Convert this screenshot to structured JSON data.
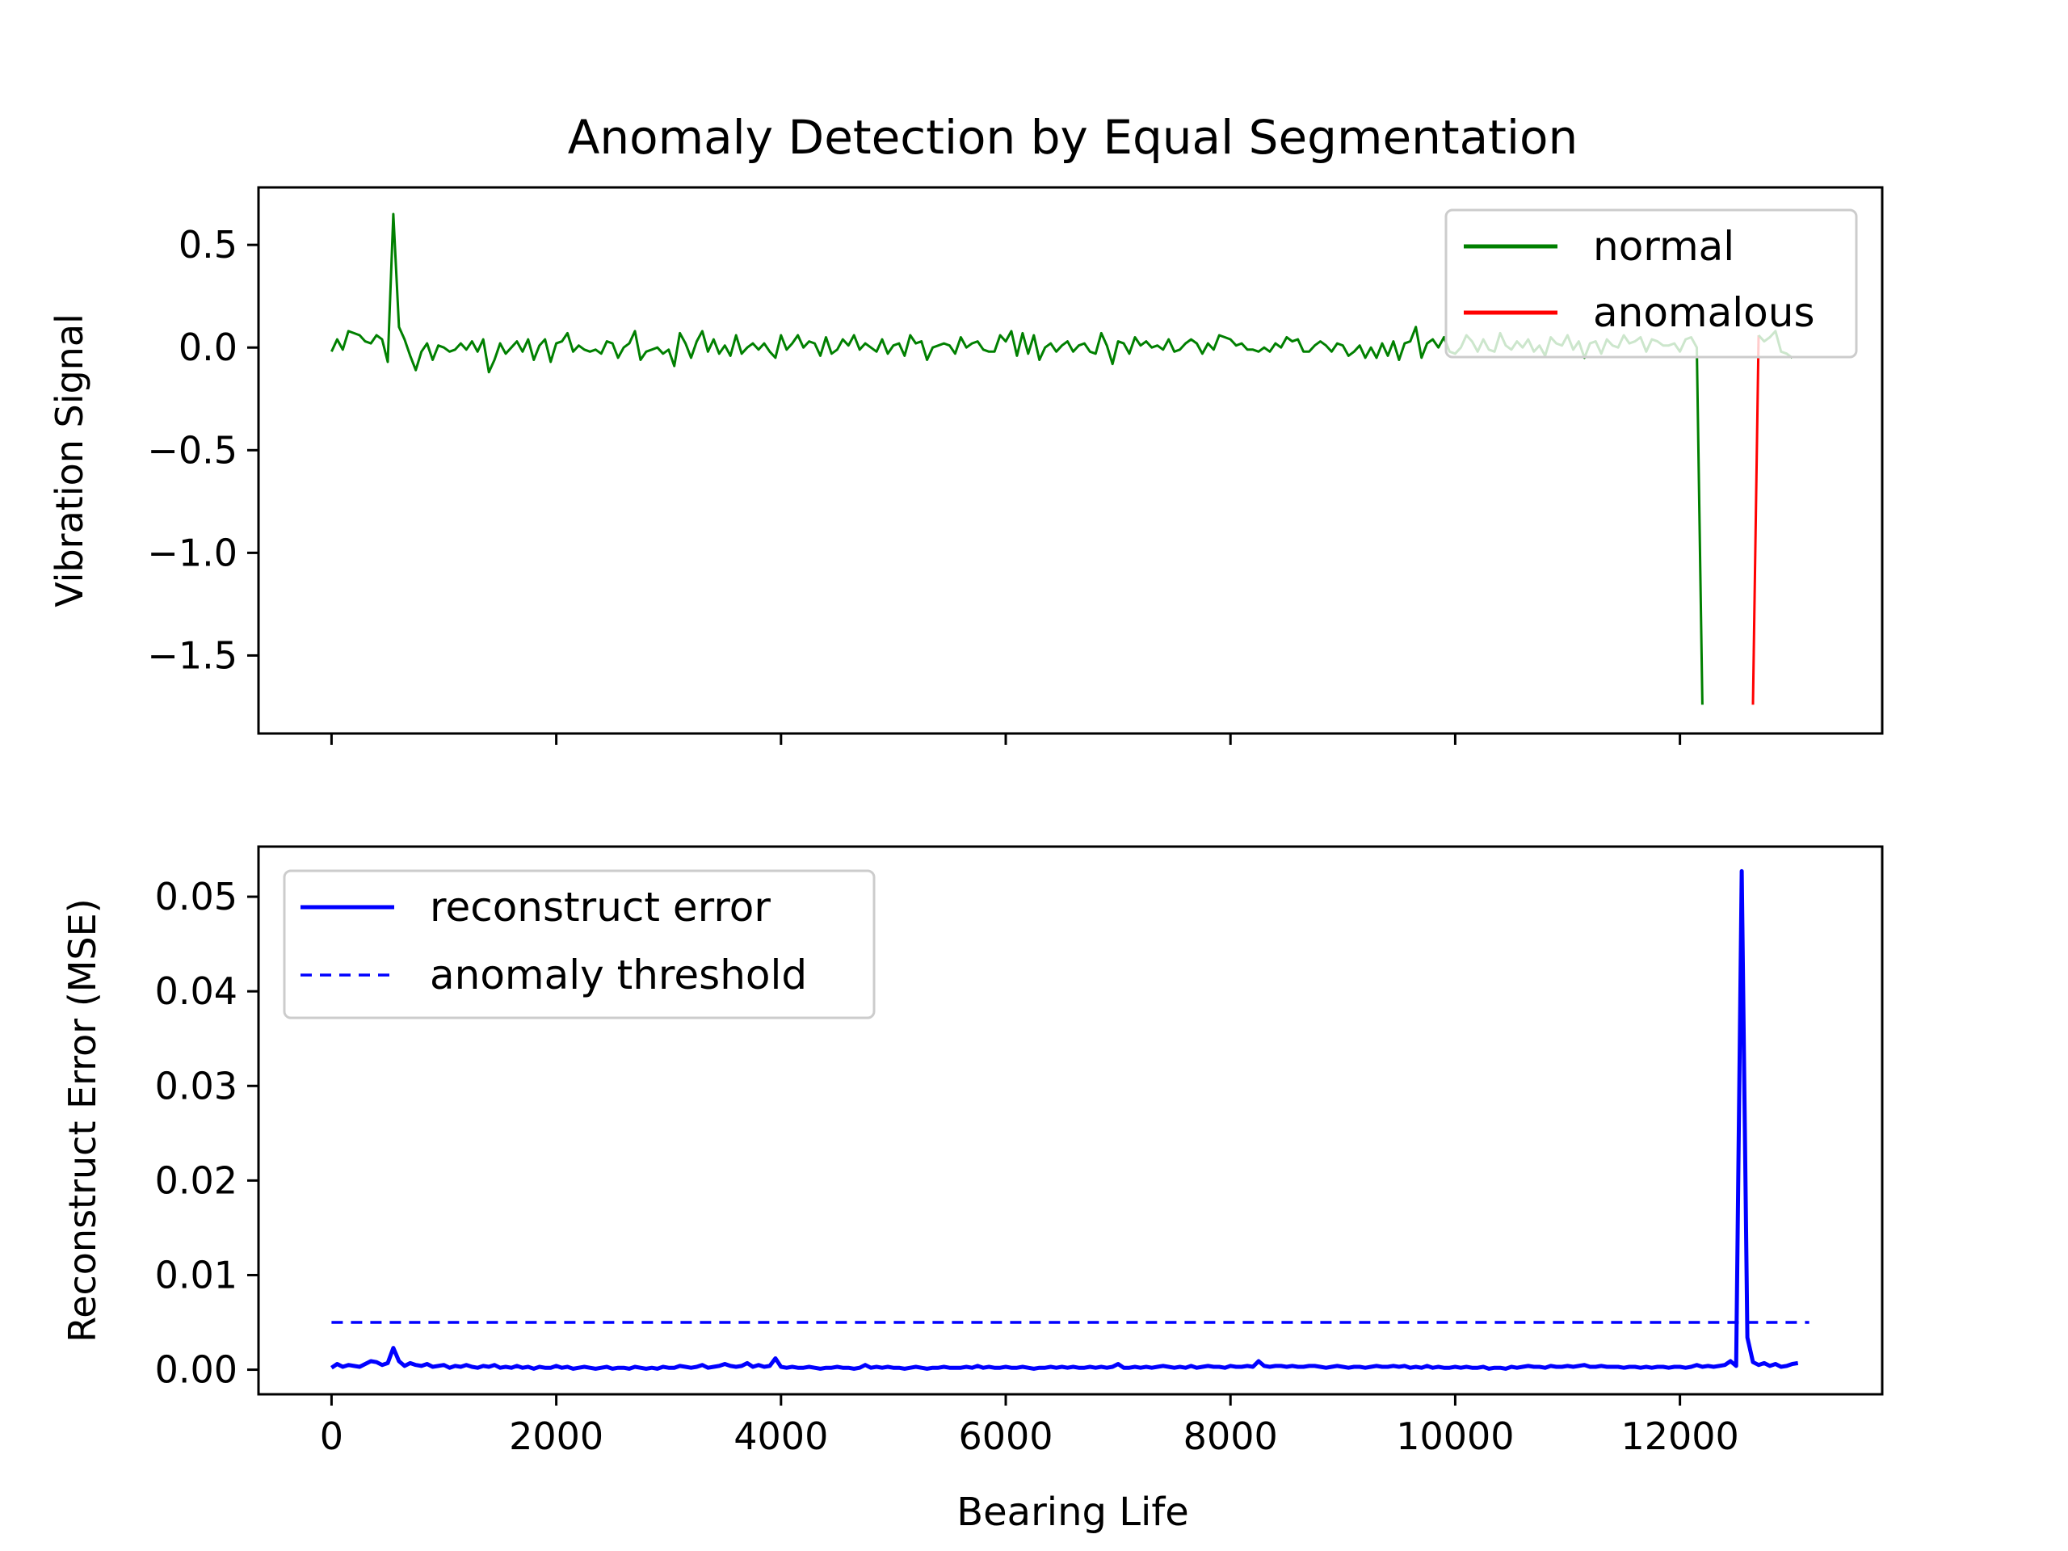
{
  "figure": {
    "title": "Anomaly Detection by Equal Segmentation",
    "xlabel": "Bearing Life"
  },
  "chart_data": [
    {
      "type": "line",
      "ylabel": "Vibration Signal",
      "xlim": [
        -650,
        13800
      ],
      "ylim": [
        -1.88,
        0.78
      ],
      "x_ticks": [
        0,
        2000,
        4000,
        6000,
        8000,
        10000,
        12000
      ],
      "y_ticks": [
        0.5,
        0.0,
        -0.5,
        -1.0,
        -1.5
      ],
      "y_tick_labels": [
        "0.5",
        "0.0",
        "−0.5",
        "−1.0",
        "−1.5"
      ],
      "show_x_tick_labels": false,
      "grid": false,
      "legend_position": "top-right",
      "legend": [
        "normal",
        "anomalous"
      ],
      "series": [
        {
          "name": "normal",
          "color": "#008000",
          "x_start": 0,
          "x_step": 50,
          "values": [
            -0.02,
            0.04,
            -0.01,
            0.08,
            0.07,
            0.06,
            0.03,
            0.02,
            0.06,
            0.04,
            -0.07,
            0.65,
            0.1,
            0.04,
            -0.04,
            -0.11,
            -0.02,
            0.02,
            -0.06,
            0.01,
            0.0,
            -0.02,
            -0.01,
            0.02,
            -0.01,
            0.03,
            -0.02,
            0.04,
            -0.12,
            -0.06,
            0.02,
            -0.03,
            0.0,
            0.03,
            -0.02,
            0.04,
            -0.06,
            0.01,
            0.04,
            -0.07,
            0.02,
            0.03,
            0.07,
            -0.02,
            0.01,
            -0.01,
            -0.02,
            -0.01,
            -0.03,
            0.03,
            0.02,
            -0.05,
            0.0,
            0.02,
            0.08,
            -0.06,
            -0.02,
            -0.01,
            0.0,
            -0.03,
            -0.01,
            -0.09,
            0.07,
            0.02,
            -0.05,
            0.03,
            0.08,
            -0.02,
            0.04,
            -0.03,
            0.01,
            -0.04,
            0.06,
            -0.03,
            0.0,
            0.02,
            -0.01,
            0.02,
            -0.02,
            -0.05,
            0.06,
            -0.01,
            0.02,
            0.06,
            0.0,
            0.03,
            0.02,
            -0.04,
            0.05,
            -0.03,
            -0.01,
            0.04,
            0.01,
            0.06,
            -0.01,
            0.02,
            0.0,
            -0.02,
            0.04,
            -0.03,
            0.01,
            0.02,
            -0.04,
            0.06,
            0.02,
            0.03,
            -0.06,
            0.0,
            0.01,
            0.02,
            0.01,
            -0.03,
            0.05,
            0.0,
            0.02,
            0.03,
            -0.01,
            -0.02,
            -0.02,
            0.06,
            0.03,
            0.08,
            -0.04,
            0.07,
            -0.03,
            0.06,
            -0.06,
            0.0,
            0.02,
            -0.02,
            0.01,
            0.03,
            -0.02,
            0.01,
            0.02,
            -0.02,
            -0.03,
            0.07,
            0.01,
            -0.08,
            0.03,
            0.02,
            -0.03,
            0.05,
            0.01,
            0.03,
            0.0,
            0.01,
            -0.01,
            0.04,
            -0.02,
            -0.01,
            0.02,
            0.04,
            0.02,
            -0.03,
            0.02,
            -0.01,
            0.06,
            0.05,
            0.04,
            0.01,
            0.02,
            -0.01,
            -0.01,
            -0.02,
            0.0,
            -0.02,
            0.02,
            0.0,
            0.05,
            0.03,
            0.04,
            -0.02,
            -0.02,
            0.01,
            0.03,
            0.01,
            -0.02,
            0.02,
            0.01,
            -0.04,
            -0.02,
            0.01,
            -0.05,
            0.0,
            -0.05,
            0.02,
            -0.04,
            0.03,
            -0.06,
            0.02,
            0.03,
            0.1,
            -0.05,
            0.02,
            0.04,
            0.0,
            0.05,
            -0.02,
            -0.03,
            0.0,
            0.06,
            0.03,
            -0.02,
            0.04,
            -0.01,
            -0.02,
            0.07,
            0.01,
            -0.01,
            0.03,
            0.0,
            0.04,
            -0.02,
            0.01,
            -0.04,
            0.05,
            0.02,
            0.01,
            0.06,
            -0.01,
            0.03,
            -0.05,
            0.02,
            0.03,
            -0.03,
            0.04,
            0.01,
            0.0,
            0.06,
            0.02,
            0.03,
            0.05,
            -0.02,
            0.04,
            0.03,
            0.01,
            0.01,
            0.02,
            -0.02,
            0.04,
            0.05,
            0.0,
            -1.74
          ],
          "split_index": 253
        },
        {
          "name": "anomalous",
          "color": "#ff0000",
          "x": [
            12650,
            12700
          ],
          "values": [
            -1.74,
            0.06
          ]
        },
        {
          "name": "",
          "color": "#008000",
          "x_start": 12700,
          "x_step": 50,
          "values": [
            0.06,
            0.03,
            0.05,
            0.08,
            -0.02,
            -0.03,
            -0.05
          ]
        }
      ]
    },
    {
      "type": "line",
      "ylabel": "Reconstruct Error (MSE)",
      "xlabel": "Bearing Life",
      "xlim": [
        -650,
        13800
      ],
      "ylim": [
        -0.0026,
        0.0553
      ],
      "x_ticks": [
        0,
        2000,
        4000,
        6000,
        8000,
        10000,
        12000
      ],
      "x_tick_labels": [
        "0",
        "2000",
        "4000",
        "6000",
        "8000",
        "10000",
        "12000"
      ],
      "y_ticks": [
        0.0,
        0.01,
        0.02,
        0.03,
        0.04,
        0.05
      ],
      "y_tick_labels": [
        "0.00",
        "0.01",
        "0.02",
        "0.03",
        "0.04",
        "0.05"
      ],
      "grid": false,
      "legend_position": "top-left",
      "legend": [
        "reconstruct error",
        "anomaly threshold"
      ],
      "series": [
        {
          "name": "reconstruct error",
          "color": "#0000ff",
          "style": "solid",
          "x_start": 0,
          "x_step": 50,
          "values": [
            0.0002,
            0.0006,
            0.0003,
            0.0005,
            0.0004,
            0.0003,
            0.0006,
            0.0009,
            0.0008,
            0.0005,
            0.0007,
            0.0023,
            0.0009,
            0.0004,
            0.0007,
            0.0005,
            0.0004,
            0.0006,
            0.0003,
            0.0004,
            0.0005,
            0.0002,
            0.0004,
            0.0003,
            0.0005,
            0.0003,
            0.0002,
            0.0004,
            0.0003,
            0.0005,
            0.0002,
            0.0003,
            0.0002,
            0.0004,
            0.0002,
            0.0003,
            0.0001,
            0.0003,
            0.0002,
            0.0002,
            0.0004,
            0.0002,
            0.0003,
            0.0001,
            0.0002,
            0.0003,
            0.0002,
            0.0001,
            0.0002,
            0.0003,
            0.0001,
            0.0002,
            0.0002,
            0.0001,
            0.0003,
            0.0002,
            0.0001,
            0.0002,
            0.0001,
            0.0003,
            0.0002,
            0.0002,
            0.0004,
            0.0003,
            0.0002,
            0.0003,
            0.0005,
            0.0002,
            0.0003,
            0.0004,
            0.0006,
            0.0004,
            0.0003,
            0.0004,
            0.0007,
            0.0003,
            0.0005,
            0.0003,
            0.0004,
            0.0012,
            0.0003,
            0.0002,
            0.0003,
            0.0002,
            0.0002,
            0.0003,
            0.0002,
            0.0001,
            0.0002,
            0.0002,
            0.0003,
            0.0002,
            0.0002,
            0.0001,
            0.0002,
            0.0005,
            0.0002,
            0.0003,
            0.0002,
            0.0003,
            0.0002,
            0.0002,
            0.0001,
            0.0002,
            0.0003,
            0.0002,
            0.0001,
            0.0002,
            0.0002,
            0.0003,
            0.0002,
            0.0002,
            0.0002,
            0.0003,
            0.0002,
            0.0004,
            0.0002,
            0.0003,
            0.0002,
            0.0002,
            0.0003,
            0.0002,
            0.0002,
            0.0003,
            0.0002,
            0.0001,
            0.0002,
            0.0002,
            0.0003,
            0.0002,
            0.0003,
            0.0002,
            0.0003,
            0.0002,
            0.0002,
            0.0003,
            0.0002,
            0.0003,
            0.0002,
            0.0003,
            0.0006,
            0.0002,
            0.0002,
            0.0003,
            0.0002,
            0.0003,
            0.0002,
            0.0003,
            0.0004,
            0.0003,
            0.0002,
            0.0003,
            0.0002,
            0.0004,
            0.0002,
            0.0003,
            0.0004,
            0.0003,
            0.0003,
            0.0002,
            0.0004,
            0.0003,
            0.0003,
            0.0004,
            0.0003,
            0.0009,
            0.0004,
            0.0003,
            0.0004,
            0.0004,
            0.0003,
            0.0004,
            0.0003,
            0.0003,
            0.0004,
            0.0004,
            0.0003,
            0.0002,
            0.0003,
            0.0004,
            0.0003,
            0.0002,
            0.0003,
            0.0003,
            0.0002,
            0.0003,
            0.0004,
            0.0003,
            0.0003,
            0.0004,
            0.0003,
            0.0004,
            0.0002,
            0.0003,
            0.0002,
            0.0004,
            0.0002,
            0.0003,
            0.0002,
            0.0002,
            0.0003,
            0.0002,
            0.0003,
            0.0002,
            0.0002,
            0.0003,
            0.0001,
            0.0002,
            0.0002,
            0.0001,
            0.0003,
            0.0002,
            0.0003,
            0.0004,
            0.0003,
            0.0003,
            0.0002,
            0.0004,
            0.0003,
            0.0003,
            0.0004,
            0.0003,
            0.0004,
            0.0005,
            0.0003,
            0.0003,
            0.0004,
            0.0003,
            0.0003,
            0.0003,
            0.0002,
            0.0003,
            0.0003,
            0.0002,
            0.0003,
            0.0002,
            0.0003,
            0.0003,
            0.0002,
            0.0003,
            0.0003,
            0.0002,
            0.0003,
            0.0005,
            0.0003,
            0.0004,
            0.0003,
            0.0004,
            0.0005,
            0.0009,
            0.0004,
            0.0527,
            0.0034,
            0.0008,
            0.0005,
            0.0007,
            0.0004,
            0.0006,
            0.0003,
            0.0004,
            0.0006,
            0.0007
          ]
        },
        {
          "name": "anomaly threshold",
          "color": "#0000ff",
          "style": "dashed",
          "x": [
            0,
            13150
          ],
          "values": [
            0.005,
            0.005
          ]
        }
      ]
    }
  ]
}
